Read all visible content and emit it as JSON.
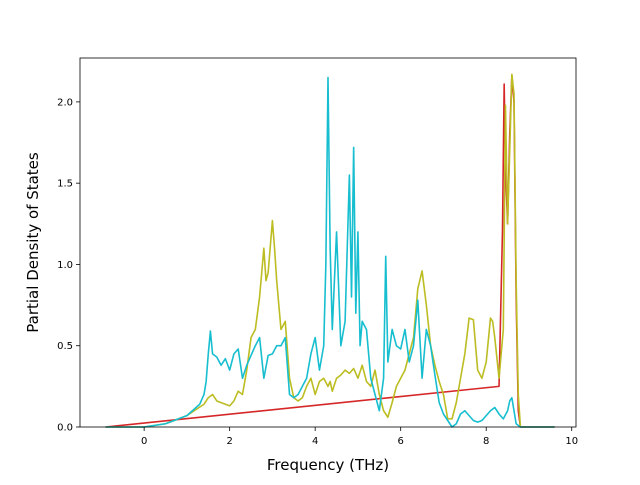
{
  "chart_data": {
    "type": "line",
    "title": "",
    "xlabel": "Frequency (THz)",
    "ylabel": "Partial Density of States",
    "xlim": [
      -1.5,
      10.1
    ],
    "ylim": [
      0.0,
      2.27
    ],
    "xticks": [
      0,
      2,
      4,
      6,
      8,
      10
    ],
    "xtick_labels": [
      "0",
      "2",
      "4",
      "6",
      "8",
      "10"
    ],
    "yticks": [
      0.0,
      0.5,
      1.0,
      1.5,
      2.0
    ],
    "ytick_labels": [
      "0.0",
      "0.5",
      "1.0",
      "1.5",
      "2.0"
    ],
    "grid": false,
    "legend": "none",
    "series": [
      {
        "color": "#d62728",
        "x": [
          -0.9,
          8.3,
          8.38,
          8.42,
          8.45,
          8.5,
          8.55,
          8.6,
          8.65,
          8.7,
          8.75,
          8.8,
          9.6
        ],
        "y": [
          0.0,
          0.25,
          1.2,
          2.11,
          1.6,
          1.25,
          1.8,
          2.16,
          2.0,
          0.8,
          0.1,
          0.0,
          0.0
        ]
      },
      {
        "color": "#bcbd22",
        "x": [
          -0.9,
          0.0,
          0.5,
          1.0,
          1.4,
          1.5,
          1.6,
          1.7,
          1.9,
          2.0,
          2.1,
          2.2,
          2.3,
          2.4,
          2.5,
          2.6,
          2.7,
          2.8,
          2.85,
          2.9,
          3.0,
          3.05,
          3.1,
          3.2,
          3.3,
          3.4,
          3.5,
          3.6,
          3.7,
          3.8,
          3.9,
          4.0,
          4.1,
          4.2,
          4.3,
          4.35,
          4.4,
          4.5,
          4.6,
          4.7,
          4.8,
          4.9,
          5.0,
          5.1,
          5.2,
          5.3,
          5.4,
          5.5,
          5.6,
          5.7,
          5.8,
          5.9,
          6.0,
          6.1,
          6.2,
          6.3,
          6.4,
          6.5,
          6.6,
          6.7,
          6.8,
          6.9,
          7.0,
          7.1,
          7.2,
          7.3,
          7.4,
          7.5,
          7.6,
          7.7,
          7.8,
          7.9,
          8.0,
          8.1,
          8.15,
          8.2,
          8.3,
          8.4,
          8.45,
          8.5,
          8.55,
          8.6,
          8.65,
          8.7,
          8.75,
          8.8,
          9.6
        ],
        "y": [
          0.0,
          0.0,
          0.02,
          0.07,
          0.14,
          0.18,
          0.2,
          0.16,
          0.14,
          0.13,
          0.16,
          0.22,
          0.2,
          0.35,
          0.55,
          0.6,
          0.8,
          1.1,
          0.9,
          0.95,
          1.27,
          1.1,
          0.9,
          0.6,
          0.65,
          0.3,
          0.18,
          0.16,
          0.18,
          0.25,
          0.3,
          0.2,
          0.28,
          0.3,
          0.25,
          0.28,
          0.22,
          0.3,
          0.32,
          0.35,
          0.33,
          0.36,
          0.3,
          0.38,
          0.28,
          0.25,
          0.35,
          0.2,
          0.1,
          0.06,
          0.15,
          0.25,
          0.3,
          0.35,
          0.45,
          0.55,
          0.85,
          0.96,
          0.75,
          0.5,
          0.38,
          0.28,
          0.2,
          0.05,
          0.05,
          0.15,
          0.3,
          0.45,
          0.67,
          0.66,
          0.35,
          0.3,
          0.4,
          0.67,
          0.65,
          0.55,
          0.3,
          0.6,
          1.98,
          1.25,
          1.7,
          2.17,
          2.05,
          0.9,
          0.2,
          0.0,
          0.0
        ]
      },
      {
        "color": "#17becf",
        "x": [
          -0.9,
          0.0,
          0.5,
          1.0,
          1.3,
          1.4,
          1.45,
          1.5,
          1.55,
          1.6,
          1.7,
          1.8,
          1.9,
          2.0,
          2.1,
          2.2,
          2.3,
          2.4,
          2.5,
          2.6,
          2.7,
          2.8,
          2.9,
          3.0,
          3.1,
          3.2,
          3.3,
          3.4,
          3.5,
          3.6,
          3.7,
          3.8,
          3.9,
          4.0,
          4.1,
          4.2,
          4.25,
          4.3,
          4.35,
          4.4,
          4.5,
          4.6,
          4.7,
          4.8,
          4.85,
          4.9,
          4.95,
          5.0,
          5.05,
          5.1,
          5.2,
          5.3,
          5.4,
          5.5,
          5.6,
          5.65,
          5.7,
          5.8,
          5.9,
          6.0,
          6.1,
          6.2,
          6.3,
          6.4,
          6.5,
          6.6,
          6.7,
          6.8,
          6.9,
          7.0,
          7.1,
          7.2,
          7.3,
          7.4,
          7.5,
          7.6,
          7.7,
          7.8,
          7.9,
          8.0,
          8.1,
          8.2,
          8.3,
          8.4,
          8.5,
          8.55,
          8.6,
          8.65,
          8.7,
          8.8,
          9.6
        ],
        "y": [
          0.0,
          0.0,
          0.02,
          0.07,
          0.14,
          0.2,
          0.28,
          0.45,
          0.59,
          0.45,
          0.43,
          0.38,
          0.42,
          0.35,
          0.45,
          0.48,
          0.3,
          0.38,
          0.44,
          0.5,
          0.55,
          0.3,
          0.44,
          0.45,
          0.5,
          0.5,
          0.55,
          0.2,
          0.18,
          0.2,
          0.25,
          0.3,
          0.45,
          0.55,
          0.35,
          0.5,
          1.0,
          2.15,
          1.1,
          0.6,
          1.2,
          0.5,
          0.65,
          1.55,
          0.8,
          1.72,
          0.7,
          1.2,
          0.5,
          0.65,
          0.6,
          0.3,
          0.2,
          0.1,
          0.3,
          1.05,
          0.4,
          0.6,
          0.5,
          0.48,
          0.6,
          0.4,
          0.5,
          0.78,
          0.3,
          0.6,
          0.5,
          0.32,
          0.15,
          0.08,
          0.04,
          0.0,
          0.02,
          0.08,
          0.1,
          0.07,
          0.04,
          0.03,
          0.04,
          0.07,
          0.1,
          0.12,
          0.08,
          0.05,
          0.1,
          0.16,
          0.18,
          0.1,
          0.02,
          0.0,
          0.0
        ]
      }
    ]
  }
}
